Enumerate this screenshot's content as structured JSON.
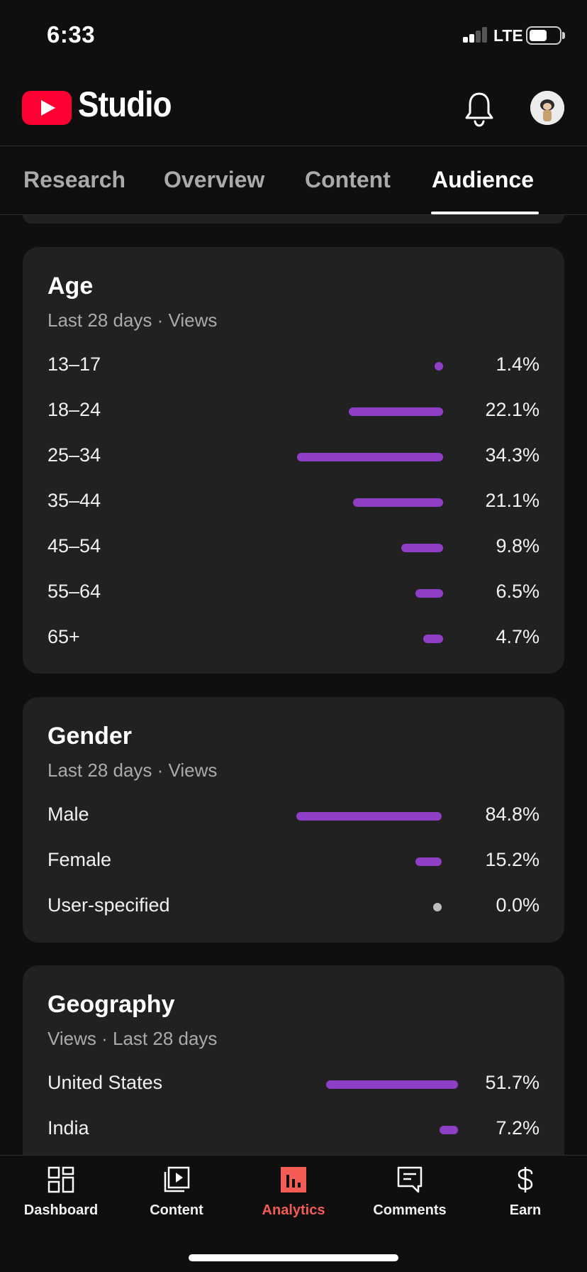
{
  "status_bar": {
    "time": "6:33",
    "network": "LTE",
    "battery_level": 0.6
  },
  "header": {
    "app_name": "Studio",
    "icons": [
      "youtube-logo-icon",
      "bell-icon",
      "avatar"
    ]
  },
  "tabs": [
    {
      "label": "Research",
      "active": false
    },
    {
      "label": "Overview",
      "active": false
    },
    {
      "label": "Content",
      "active": false
    },
    {
      "label": "Audience",
      "active": true
    }
  ],
  "colors": {
    "bar": "#8e3fc5",
    "accent": "#f25c54",
    "card": "#212121",
    "background": "#0f0f0f"
  },
  "age": {
    "title": "Age",
    "subtitle": "Last 28 days · Views",
    "rows": [
      {
        "label": "13–17",
        "value": "1.4%",
        "share": 1.4
      },
      {
        "label": "18–24",
        "value": "22.1%",
        "share": 22.1
      },
      {
        "label": "25–34",
        "value": "34.3%",
        "share": 34.3
      },
      {
        "label": "35–44",
        "value": "21.1%",
        "share": 21.1
      },
      {
        "label": "45–54",
        "value": "9.8%",
        "share": 9.8
      },
      {
        "label": "55–64",
        "value": "6.5%",
        "share": 6.5
      },
      {
        "label": "65+",
        "value": "4.7%",
        "share": 4.7
      }
    ]
  },
  "gender": {
    "title": "Gender",
    "subtitle": "Last 28 days · Views",
    "rows": [
      {
        "label": "Male",
        "value": "84.8%",
        "share": 84.8
      },
      {
        "label": "Female",
        "value": "15.2%",
        "share": 15.2
      },
      {
        "label": "User-specified",
        "value": "0.0%",
        "share": 0.0
      }
    ]
  },
  "geography": {
    "title": "Geography",
    "subtitle": "Views · Last 28 days",
    "rows": [
      {
        "label": "United States",
        "value": "51.7%",
        "share": 51.7
      },
      {
        "label": "India",
        "value": "7.2%",
        "share": 7.2
      }
    ]
  },
  "bottom_nav": [
    {
      "label": "Dashboard",
      "icon": "dashboard-icon",
      "active": false
    },
    {
      "label": "Content",
      "icon": "content-icon",
      "active": false
    },
    {
      "label": "Analytics",
      "icon": "analytics-icon",
      "active": true
    },
    {
      "label": "Comments",
      "icon": "comments-icon",
      "active": false
    },
    {
      "label": "Earn",
      "icon": "earn-icon",
      "active": false
    }
  ]
}
